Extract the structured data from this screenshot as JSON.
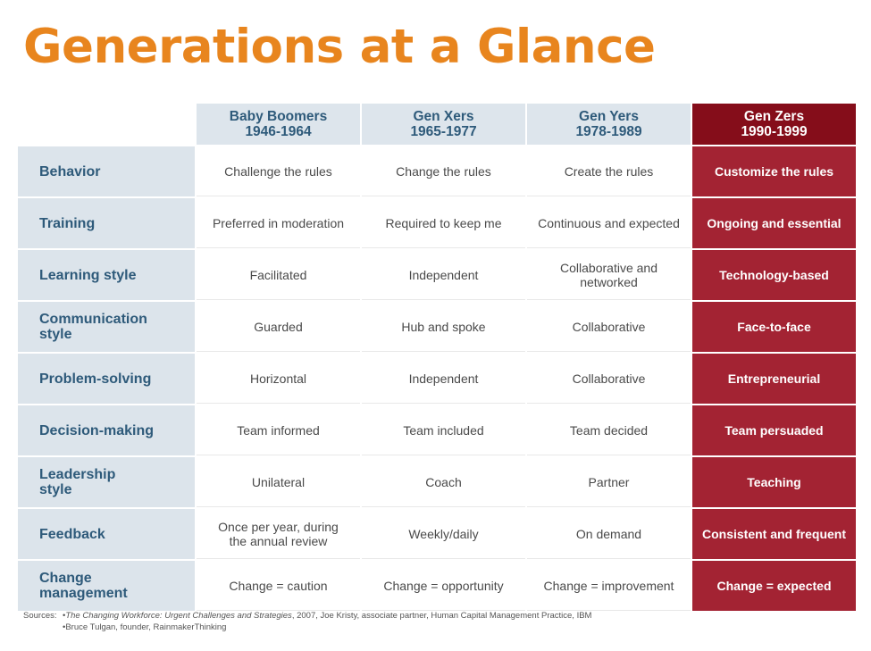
{
  "title": "Generations at a Glance",
  "columns": [
    {
      "name": "Baby Boomers",
      "years": "1946-1964"
    },
    {
      "name": "Gen Xers",
      "years": "1965-1977"
    },
    {
      "name": "Gen Yers",
      "years": "1978-1989"
    },
    {
      "name": "Gen Zers",
      "years": "1990-1999"
    }
  ],
  "rows": [
    {
      "label": "Behavior",
      "cells": [
        "Challenge the rules",
        "Change the rules",
        "Create the rules",
        "Customize the rules"
      ]
    },
    {
      "label": "Training",
      "cells": [
        "Preferred in moderation",
        "Required to keep me",
        "Continuous and expected",
        "Ongoing and essential"
      ]
    },
    {
      "label": "Learning style",
      "cells": [
        "Facilitated",
        "Independent",
        "Collaborative and networked",
        "Technology-based"
      ]
    },
    {
      "label": "Communication style",
      "cells": [
        "Guarded",
        "Hub and spoke",
        "Collaborative",
        "Face-to-face"
      ]
    },
    {
      "label": "Problem-solving",
      "cells": [
        "Horizontal",
        "Independent",
        "Collaborative",
        "Entrepreneurial"
      ]
    },
    {
      "label": "Decision-making",
      "cells": [
        "Team informed",
        "Team included",
        "Team decided",
        "Team persuaded"
      ]
    },
    {
      "label": "Leadership style",
      "cells": [
        "Unilateral",
        "Coach",
        "Partner",
        "Teaching"
      ]
    },
    {
      "label": "Feedback",
      "cells": [
        "Once per year, during the annual review",
        "Weekly/daily",
        "On demand",
        "Consistent and frequent"
      ]
    },
    {
      "label": "Change management",
      "cells": [
        "Change = caution",
        "Change = opportunity",
        "Change = improvement",
        "Change = expected"
      ]
    }
  ],
  "sources": {
    "label": "Sources:",
    "lines": [
      {
        "title": "The Changing Workforce: Urgent Challenges and Strategies",
        "rest": ", 2007, Joe Kristy, associate partner, Human Capital Management Practice, IBM"
      },
      {
        "title": "",
        "rest": "Bruce Tulgan, founder, RainmakerThinking"
      }
    ]
  },
  "colors": {
    "title": "#e8851e",
    "header_text": "#2e5a7a",
    "row_header_bg": "#dce4eb",
    "accent_dark": "#850d1a",
    "accent": "#a32333"
  }
}
